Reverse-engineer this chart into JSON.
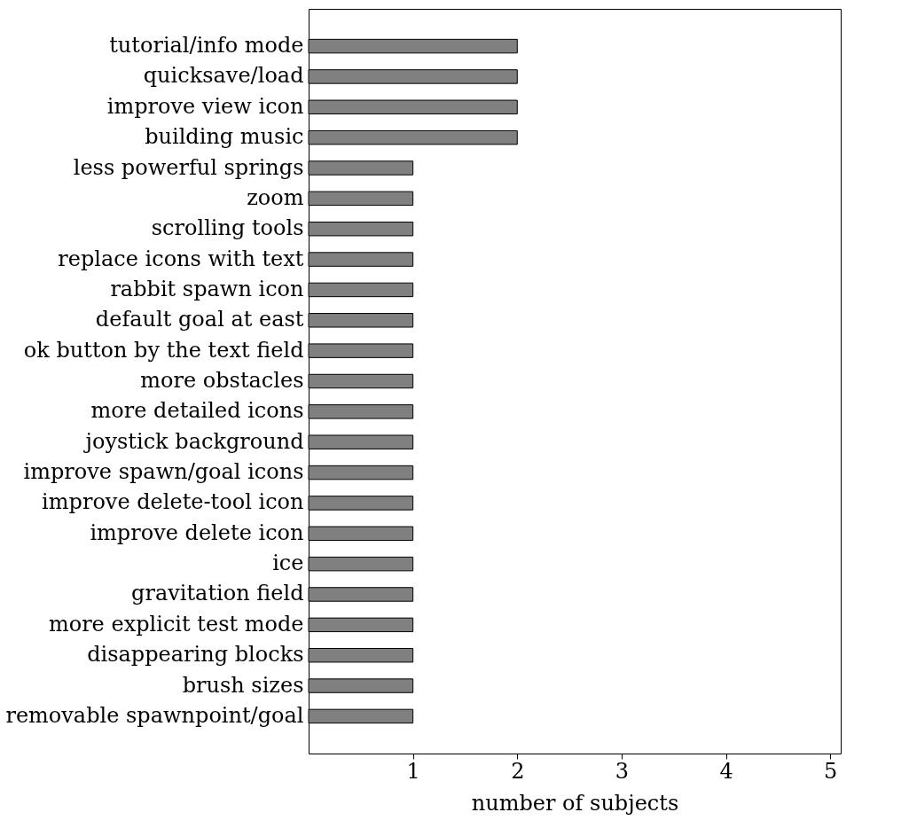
{
  "chart_data": {
    "type": "bar",
    "orientation": "horizontal",
    "xlabel": "number of subjects",
    "categories": [
      "tutorial/info mode",
      "quicksave/load",
      "improve view icon",
      "building music",
      "less powerful springs",
      "zoom",
      "scrolling tools",
      "replace icons with text",
      "rabbit spawn icon",
      "default goal at east",
      "ok button by the text field",
      "more obstacles",
      "more detailed icons",
      "joystick background",
      "improve spawn/goal icons",
      "improve delete-tool icon",
      "improve delete icon",
      "ice",
      "gravitation field",
      "more explicit test mode",
      "disappearing blocks",
      "brush sizes",
      "removable spawnpoint/goal"
    ],
    "values": [
      2,
      2,
      2,
      2,
      1,
      1,
      1,
      1,
      1,
      1,
      1,
      1,
      1,
      1,
      1,
      1,
      1,
      1,
      1,
      1,
      1,
      1,
      1
    ],
    "color": "#808080",
    "xlim": [
      0,
      5.1
    ],
    "xticks": [
      1,
      2,
      3,
      4,
      5
    ],
    "grid": false
  }
}
